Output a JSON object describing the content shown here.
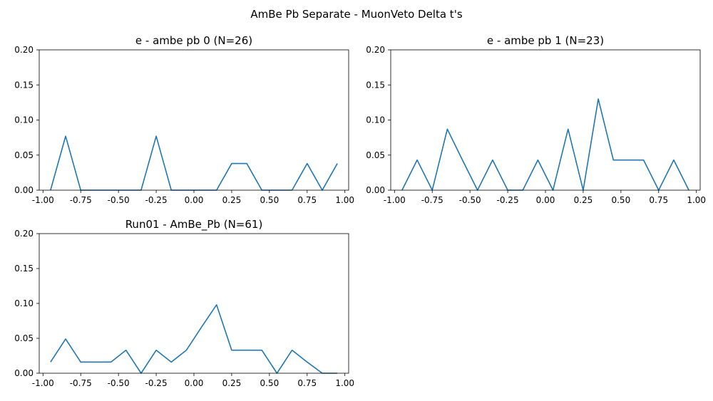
{
  "figure": {
    "suptitle": "AmBe Pb Separate - MuonVeto Delta t's"
  },
  "colors": {
    "line": "#1f77b4",
    "background": "#ffffff"
  },
  "chart_data": [
    {
      "type": "line",
      "title": "e - ambe pb 0 (N=26)",
      "xlabel": "",
      "ylabel": "",
      "xlim": [
        -1.025,
        1.025
      ],
      "ylim": [
        0.0,
        0.2
      ],
      "xticks": [
        "-1.00",
        "-0.75",
        "-0.50",
        "-0.25",
        "0.00",
        "0.25",
        "0.50",
        "0.75",
        "1.00"
      ],
      "yticks": [
        "0.00",
        "0.05",
        "0.10",
        "0.15",
        "0.20"
      ],
      "grid": false,
      "x": [
        -0.95,
        -0.85,
        -0.75,
        -0.65,
        -0.55,
        -0.45,
        -0.35,
        -0.25,
        -0.15,
        -0.05,
        0.05,
        0.15,
        0.25,
        0.35,
        0.45,
        0.55,
        0.65,
        0.75,
        0.85,
        0.95
      ],
      "series": [
        {
          "values": [
            0.0,
            0.077,
            0.0,
            0.0,
            0.0,
            0.0,
            0.0,
            0.077,
            0.0,
            0.0,
            0.0,
            0.0,
            0.038,
            0.038,
            0.0,
            0.0,
            0.0,
            0.038,
            0.0,
            0.038
          ]
        }
      ]
    },
    {
      "type": "line",
      "title": "e - ambe pb 1 (N=23)",
      "xlabel": "",
      "ylabel": "",
      "xlim": [
        -1.025,
        1.025
      ],
      "ylim": [
        0.0,
        0.2
      ],
      "xticks": [
        "-1.00",
        "-0.75",
        "-0.50",
        "-0.25",
        "0.00",
        "0.25",
        "0.50",
        "0.75",
        "1.00"
      ],
      "yticks": [
        "0.00",
        "0.05",
        "0.10",
        "0.15",
        "0.20"
      ],
      "grid": false,
      "x": [
        -0.95,
        -0.85,
        -0.75,
        -0.65,
        -0.55,
        -0.45,
        -0.35,
        -0.25,
        -0.15,
        -0.05,
        0.05,
        0.15,
        0.25,
        0.35,
        0.45,
        0.55,
        0.65,
        0.75,
        0.85,
        0.95
      ],
      "series": [
        {
          "values": [
            0.0,
            0.043,
            0.0,
            0.087,
            0.043,
            0.0,
            0.043,
            0.0,
            0.0,
            0.043,
            0.0,
            0.087,
            0.0,
            0.13,
            0.043,
            0.043,
            0.043,
            0.0,
            0.043,
            0.0
          ]
        }
      ]
    },
    {
      "type": "line",
      "title": "Run01 - AmBe_Pb (N=61)",
      "xlabel": "",
      "ylabel": "",
      "xlim": [
        -1.025,
        1.025
      ],
      "ylim": [
        0.0,
        0.2
      ],
      "xticks": [
        "-1.00",
        "-0.75",
        "-0.50",
        "-0.25",
        "0.00",
        "0.25",
        "0.50",
        "0.75",
        "1.00"
      ],
      "yticks": [
        "0.00",
        "0.05",
        "0.10",
        "0.15",
        "0.20"
      ],
      "grid": false,
      "x": [
        -0.95,
        -0.85,
        -0.75,
        -0.65,
        -0.55,
        -0.45,
        -0.35,
        -0.25,
        -0.15,
        -0.05,
        0.05,
        0.15,
        0.25,
        0.35,
        0.45,
        0.55,
        0.65,
        0.75,
        0.85,
        0.95
      ],
      "series": [
        {
          "values": [
            0.016,
            0.049,
            0.016,
            0.016,
            0.016,
            0.033,
            0.0,
            0.033,
            0.016,
            0.033,
            0.066,
            0.098,
            0.033,
            0.033,
            0.033,
            0.0,
            0.033,
            0.016,
            0.0,
            0.0
          ]
        }
      ]
    }
  ]
}
